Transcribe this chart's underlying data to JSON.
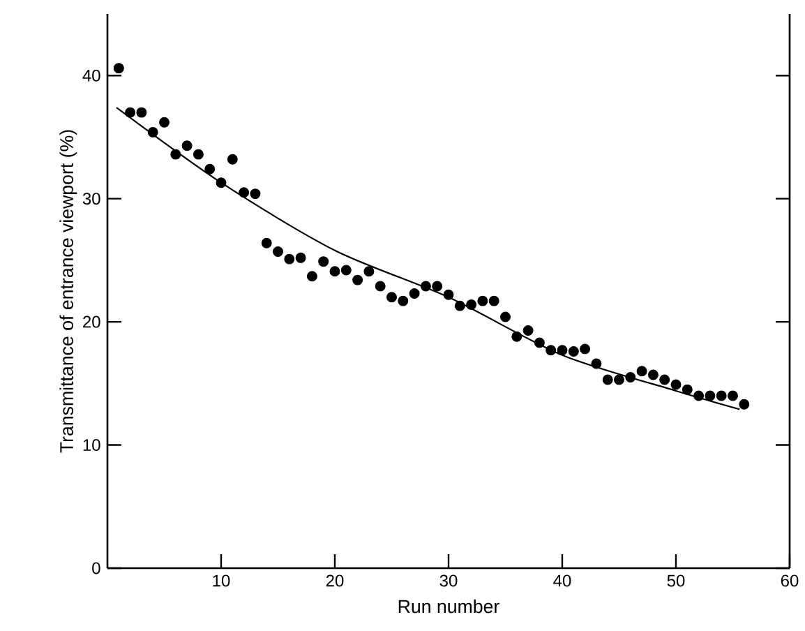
{
  "chart_data": {
    "type": "scatter",
    "xlabel": "Run number",
    "ylabel": "Transmittance of entrance viewport (%)",
    "xlim": [
      0,
      60
    ],
    "ylim": [
      0,
      45
    ],
    "xticks": [
      10,
      20,
      30,
      40,
      50,
      60
    ],
    "yticks": [
      0,
      10,
      20,
      30,
      40
    ],
    "grid": false,
    "series": [
      {
        "color": "#000000",
        "marker": "circle",
        "x": [
          1,
          2,
          3,
          4,
          5,
          6,
          7,
          8,
          9,
          10,
          11,
          12,
          13,
          14,
          15,
          16,
          17,
          18,
          19,
          20,
          21,
          22,
          23,
          24,
          25,
          26,
          27,
          28,
          29,
          30,
          31,
          32,
          33,
          34,
          35,
          36,
          37,
          38,
          39,
          40,
          41,
          42,
          43,
          44,
          45,
          46,
          47,
          48,
          49,
          50,
          51,
          52,
          53,
          54,
          55,
          56
        ],
        "values": [
          40.6,
          37.0,
          37.0,
          35.4,
          36.2,
          33.6,
          34.3,
          33.6,
          32.4,
          31.3,
          33.2,
          30.5,
          30.4,
          26.4,
          25.7,
          25.1,
          25.2,
          23.7,
          24.9,
          24.1,
          24.2,
          23.4,
          24.1,
          22.9,
          22.0,
          21.7,
          22.3,
          22.9,
          22.9,
          22.2,
          21.3,
          21.4,
          21.7,
          21.7,
          20.4,
          18.8,
          19.3,
          18.3,
          17.7,
          17.7,
          17.6,
          17.8,
          16.6,
          15.3,
          15.3,
          15.5,
          16.0,
          15.7,
          15.3,
          14.9,
          14.5,
          14.0,
          14.0,
          14.0,
          14.0,
          13.3
        ]
      },
      {
        "type": "line",
        "color": "#000000",
        "marker": "none",
        "line_style": "solid",
        "x": [
          0.8,
          10,
          20,
          30,
          40,
          50,
          55.6
        ],
        "values": [
          37.4,
          31.3,
          25.8,
          22.0,
          17.3,
          14.4,
          12.9
        ]
      }
    ]
  }
}
